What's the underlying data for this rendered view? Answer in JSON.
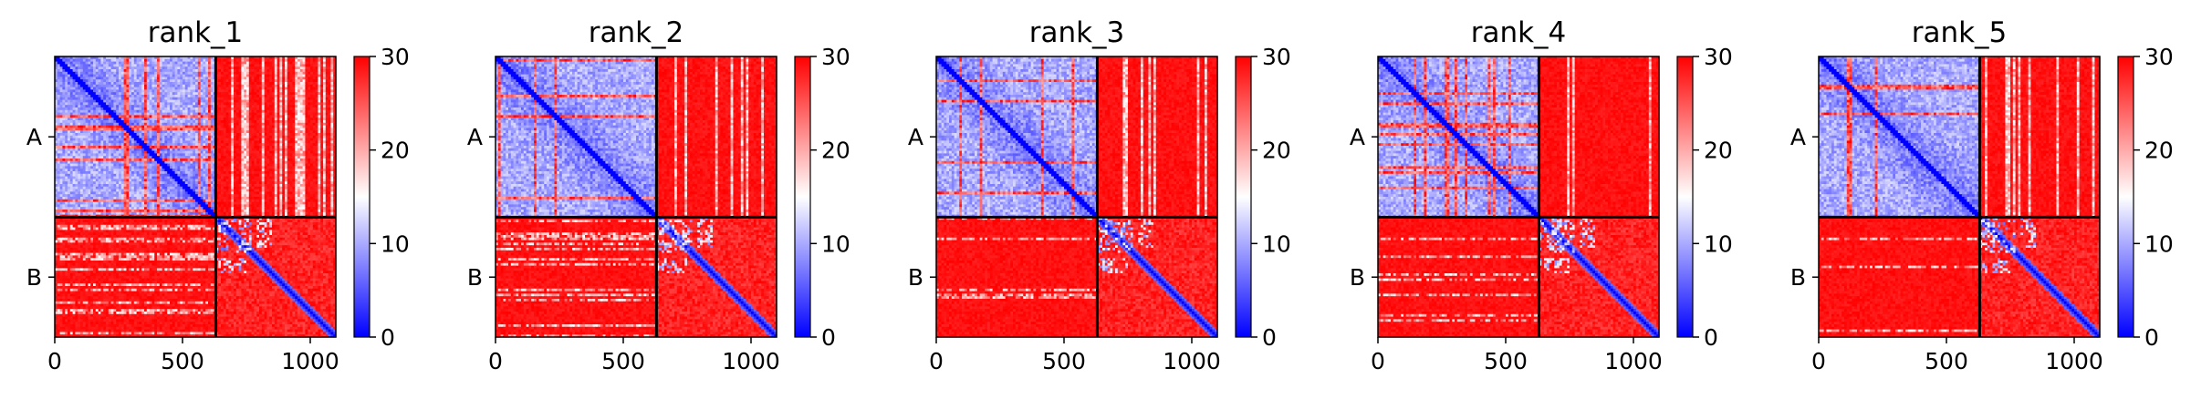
{
  "chart_data": [
    {
      "type": "heatmap",
      "title": "rank_1",
      "xticks": [
        0,
        500,
        1000
      ],
      "xlim": [
        0,
        1100
      ],
      "chains": [
        {
          "name": "A",
          "length": 630
        },
        {
          "name": "B",
          "length": 470
        }
      ],
      "colorbar": {
        "min": 0,
        "max": 30,
        "ticks": [
          0,
          10,
          20,
          30
        ],
        "colormap": "bwr"
      },
      "offdiag_white_fraction": 0.25
    },
    {
      "type": "heatmap",
      "title": "rank_2",
      "xticks": [
        0,
        500,
        1000
      ],
      "xlim": [
        0,
        1100
      ],
      "chains": [
        {
          "name": "A",
          "length": 630
        },
        {
          "name": "B",
          "length": 470
        }
      ],
      "colorbar": {
        "min": 0,
        "max": 30,
        "ticks": [
          0,
          10,
          20,
          30
        ],
        "colormap": "bwr"
      },
      "offdiag_white_fraction": 0.2
    },
    {
      "type": "heatmap",
      "title": "rank_3",
      "xticks": [
        0,
        500,
        1000
      ],
      "xlim": [
        0,
        1100
      ],
      "chains": [
        {
          "name": "A",
          "length": 630
        },
        {
          "name": "B",
          "length": 470
        }
      ],
      "colorbar": {
        "min": 0,
        "max": 30,
        "ticks": [
          0,
          10,
          20,
          30
        ],
        "colormap": "bwr"
      },
      "offdiag_white_fraction": 0.12
    },
    {
      "type": "heatmap",
      "title": "rank_4",
      "xticks": [
        0,
        500,
        1000
      ],
      "xlim": [
        0,
        1100
      ],
      "chains": [
        {
          "name": "A",
          "length": 630
        },
        {
          "name": "B",
          "length": 470
        }
      ],
      "colorbar": {
        "min": 0,
        "max": 30,
        "ticks": [
          0,
          10,
          20,
          30
        ],
        "colormap": "bwr"
      },
      "offdiag_white_fraction": 0.1
    },
    {
      "type": "heatmap",
      "title": "rank_5",
      "xticks": [
        0,
        500,
        1000
      ],
      "xlim": [
        0,
        1100
      ],
      "chains": [
        {
          "name": "A",
          "length": 630
        },
        {
          "name": "B",
          "length": 470
        }
      ],
      "colorbar": {
        "min": 0,
        "max": 30,
        "ticks": [
          0,
          10,
          20,
          30
        ],
        "colormap": "bwr"
      },
      "offdiag_white_fraction": 0.06
    }
  ],
  "colors": {
    "low": "#0000ff",
    "mid": "#ffffff",
    "high": "#ff0000"
  }
}
